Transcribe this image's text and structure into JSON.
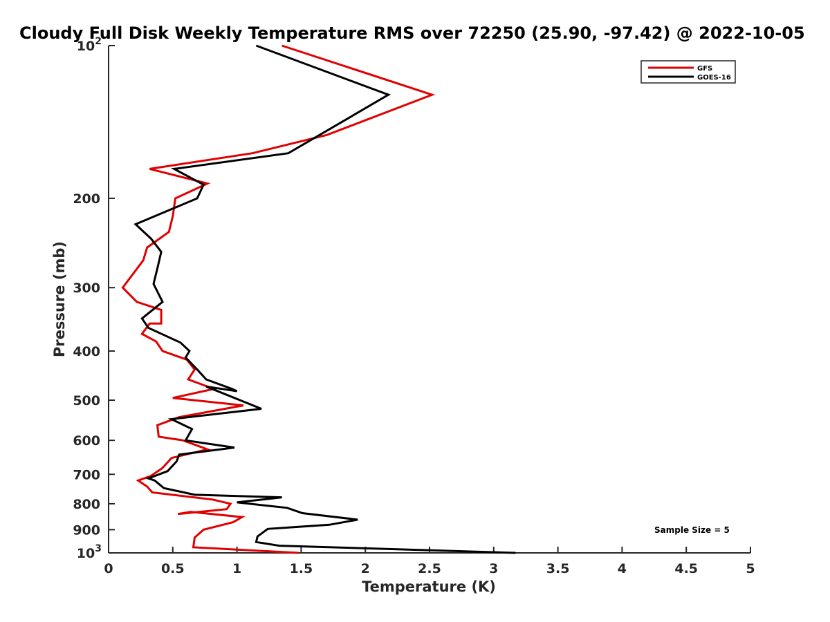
{
  "chart_data": {
    "type": "line",
    "title": "Cloudy Full Disk Weekly Temperature RMS over 72250 (25.90, -97.42) @ 2022-10-05",
    "xlabel": "Temperature (K)",
    "ylabel": "Pressure (mb)",
    "xlim": [
      0,
      5
    ],
    "ylim": [
      100,
      1000
    ],
    "y_scale": "log",
    "y_reversed": true,
    "grid": false,
    "legend_position": "top-right",
    "x_ticks": [
      {
        "v": 0,
        "label": "0"
      },
      {
        "v": 0.5,
        "label": "0.5"
      },
      {
        "v": 1,
        "label": "1"
      },
      {
        "v": 1.5,
        "label": "1.5"
      },
      {
        "v": 2,
        "label": "2"
      },
      {
        "v": 2.5,
        "label": "2.5"
      },
      {
        "v": 3,
        "label": "3"
      },
      {
        "v": 3.5,
        "label": "3.5"
      },
      {
        "v": 4,
        "label": "4"
      },
      {
        "v": 4.5,
        "label": "4.5"
      },
      {
        "v": 5,
        "label": "5"
      }
    ],
    "y_ticks": [
      {
        "v": 100,
        "base": "10",
        "exp": "2"
      },
      {
        "v": 200,
        "label": "200"
      },
      {
        "v": 300,
        "label": "300"
      },
      {
        "v": 400,
        "label": "400"
      },
      {
        "v": 500,
        "label": "500"
      },
      {
        "v": 600,
        "label": "600"
      },
      {
        "v": 700,
        "label": "700"
      },
      {
        "v": 800,
        "label": "800"
      },
      {
        "v": 900,
        "label": "900"
      },
      {
        "v": 1000,
        "base": "10",
        "exp": "3"
      }
    ],
    "series": [
      {
        "name": "GFS",
        "color": "#e00000",
        "points": [
          [
            1.35,
            100
          ],
          [
            2.52,
            125
          ],
          [
            1.7,
            150
          ],
          [
            1.12,
            163
          ],
          [
            0.32,
            175
          ],
          [
            0.77,
            187
          ],
          [
            0.52,
            200
          ],
          [
            0.5,
            217
          ],
          [
            0.47,
            233
          ],
          [
            0.3,
            250
          ],
          [
            0.27,
            265
          ],
          [
            0.11,
            300
          ],
          [
            0.22,
            320
          ],
          [
            0.41,
            332
          ],
          [
            0.41,
            353
          ],
          [
            0.32,
            353
          ],
          [
            0.26,
            370
          ],
          [
            0.37,
            383
          ],
          [
            0.42,
            400
          ],
          [
            0.61,
            416
          ],
          [
            0.67,
            435
          ],
          [
            0.62,
            455
          ],
          [
            0.82,
            475
          ],
          [
            0.5,
            495
          ],
          [
            1.05,
            512
          ],
          [
            0.55,
            540
          ],
          [
            0.38,
            560
          ],
          [
            0.39,
            590
          ],
          [
            0.58,
            600
          ],
          [
            0.77,
            625
          ],
          [
            0.49,
            650
          ],
          [
            0.42,
            680
          ],
          [
            0.33,
            705
          ],
          [
            0.23,
            720
          ],
          [
            0.3,
            740
          ],
          [
            0.34,
            760
          ],
          [
            0.81,
            785
          ],
          [
            0.95,
            800
          ],
          [
            0.92,
            820
          ],
          [
            0.54,
            838
          ],
          [
            0.64,
            830
          ],
          [
            1.04,
            850
          ],
          [
            0.97,
            870
          ],
          [
            0.74,
            900
          ],
          [
            0.67,
            933
          ],
          [
            0.66,
            975
          ],
          [
            1.48,
            1000
          ]
        ]
      },
      {
        "name": "GOES-16",
        "color": "#000000",
        "points": [
          [
            1.15,
            100
          ],
          [
            2.18,
            125
          ],
          [
            1.4,
            163
          ],
          [
            0.51,
            175
          ],
          [
            0.74,
            188
          ],
          [
            0.69,
            200
          ],
          [
            0.21,
            225
          ],
          [
            0.33,
            240
          ],
          [
            0.41,
            255
          ],
          [
            0.38,
            275
          ],
          [
            0.35,
            295
          ],
          [
            0.42,
            320
          ],
          [
            0.26,
            345
          ],
          [
            0.31,
            360
          ],
          [
            0.56,
            385
          ],
          [
            0.63,
            400
          ],
          [
            0.6,
            412
          ],
          [
            0.69,
            435
          ],
          [
            0.76,
            455
          ],
          [
            0.96,
            475
          ],
          [
            1.0,
            480
          ],
          [
            0.76,
            470
          ],
          [
            1.19,
            520
          ],
          [
            0.49,
            545
          ],
          [
            0.65,
            570
          ],
          [
            0.6,
            600
          ],
          [
            0.98,
            620
          ],
          [
            0.55,
            640
          ],
          [
            0.53,
            660
          ],
          [
            0.46,
            690
          ],
          [
            0.31,
            713
          ],
          [
            0.36,
            720
          ],
          [
            0.43,
            745
          ],
          [
            0.67,
            768
          ],
          [
            1.35,
            777
          ],
          [
            1.0,
            795
          ],
          [
            1.39,
            815
          ],
          [
            1.51,
            835
          ],
          [
            1.94,
            860
          ],
          [
            1.72,
            880
          ],
          [
            1.24,
            897
          ],
          [
            1.16,
            928
          ],
          [
            1.15,
            952
          ],
          [
            1.33,
            968
          ],
          [
            3.17,
            1000
          ]
        ]
      }
    ],
    "annotation": "Sample Size = 5"
  }
}
